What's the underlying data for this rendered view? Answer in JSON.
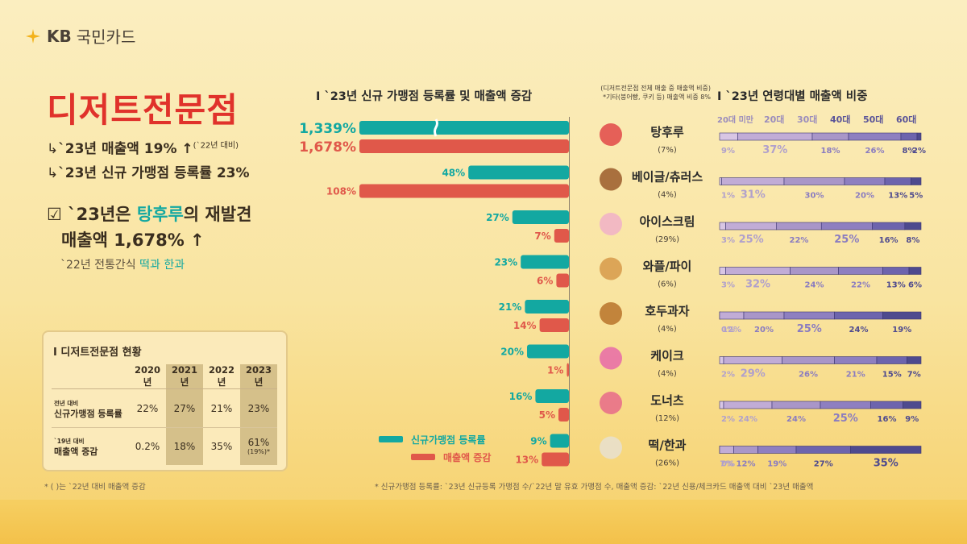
{
  "logo": {
    "kb": "KB",
    "name": "국민카드"
  },
  "headline": {
    "title": "디저트전문점",
    "line1": "`23년 매출액 19% ↑",
    "line1_note": "(`22년 대비)",
    "line2": "`23년 신규 가맹점 등록률 23%",
    "hl_pre": "`23년은 ",
    "hl_accent": "탕후루",
    "hl_post": "의 재발견",
    "hl_line2": "매출액 1,678% ↑",
    "trad_pre": "`22년 전통간식 ",
    "trad_accent": "떡과 한과"
  },
  "status_box": {
    "title": "I 디저트전문점 현황",
    "years": [
      "2020년",
      "2021년",
      "2022년",
      "2023년"
    ],
    "row1_small": "전년 대비",
    "row1_label": "신규가맹점 등록률",
    "row1_values": [
      "22%",
      "27%",
      "21%",
      "23%"
    ],
    "row2_small": "`19년 대비",
    "row2_label": "매출액 증감",
    "row2_values": [
      "0.2%",
      "18%",
      "35%",
      "61%"
    ],
    "row2_note": "(19%)*"
  },
  "footnotes": {
    "left": "* ( )는 `22년 대비 매출액 증감",
    "right": "* 신규가맹점 등록률: `23년 신규등록 가맹점 수/`22년 말 유효 가맹점 수, 매출액 증감: `22년 신용/체크카드 매출액 대비 `23년 매출액"
  },
  "colors": {
    "teal": "#13a8a1",
    "red": "#e0584a",
    "title_red": "#e0322b"
  },
  "chart_data": [
    {
      "type": "bar",
      "title": "I `23년 신규 가맹점 등록률 및 매출액 증감",
      "categories": [
        "탕후루",
        "베이글/츄러스",
        "아이스크림",
        "와플/파이",
        "호두과자",
        "케이크",
        "도너츠",
        "떡/한과"
      ],
      "series": [
        {
          "name": "신규가맹점 등록률",
          "values": [
            1339,
            48,
            27,
            23,
            21,
            20,
            16,
            9
          ],
          "labels": [
            "1,339%",
            "48%",
            "27%",
            "23%",
            "21%",
            "20%",
            "16%",
            "9%"
          ]
        },
        {
          "name": "매출액 증감",
          "values": [
            1678,
            108,
            7,
            6,
            14,
            1,
            5,
            13
          ],
          "labels": [
            "1,678%",
            "108%",
            "7%",
            "6%",
            "14%",
            "1%",
            "5%",
            "13%"
          ]
        }
      ],
      "axis_break": true
    },
    {
      "type": "bar",
      "stacked": true,
      "title": "I `23년 연령대별 매출액 비중",
      "note1": "(디저트전문점 전체 매출 중 매출액 비중)",
      "note2": "*기타(붕어빵, 쿠키 등) 매출액 비중 8%",
      "age_groups": [
        "20대 미만",
        "20대",
        "30대",
        "40대",
        "50대",
        "60대"
      ],
      "categories": [
        "탕후루",
        "베이글/츄러스",
        "아이스크림",
        "와플/파이",
        "호두과자",
        "케이크",
        "도너츠",
        "떡/한과"
      ],
      "shares": [
        "(7%)",
        "(4%)",
        "(29%)",
        "(6%)",
        "(4%)",
        "(4%)",
        "(12%)",
        "(26%)"
      ],
      "icons": [
        "tanghulu-icon",
        "churros-icon",
        "icecream-icon",
        "waffle-icon",
        "walnut-cake-icon",
        "cake-icon",
        "donut-icon",
        "ricecake-icon"
      ],
      "rows": [
        [
          9,
          37,
          18,
          26,
          8,
          2
        ],
        [
          1,
          31,
          30,
          20,
          13,
          5
        ],
        [
          3,
          25,
          22,
          25,
          16,
          8
        ],
        [
          3,
          32,
          24,
          22,
          13,
          6
        ],
        [
          0,
          12,
          20,
          25,
          24,
          19
        ],
        [
          2,
          29,
          26,
          21,
          15,
          7
        ],
        [
          2,
          24,
          24,
          25,
          16,
          9
        ],
        [
          0,
          7,
          12,
          19,
          27,
          35
        ]
      ],
      "palette": [
        "#d8c6e4",
        "#c1acd6",
        "#a996c8",
        "#8e7fc0",
        "#6d64ad",
        "#4e4a8e"
      ]
    }
  ]
}
